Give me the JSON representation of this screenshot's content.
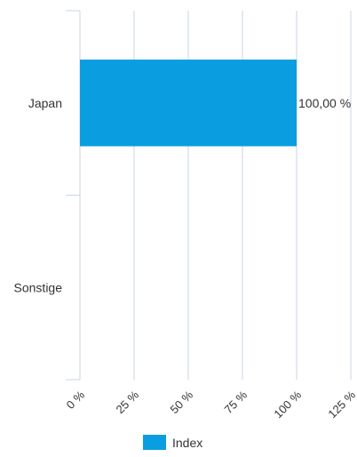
{
  "chart_data": {
    "type": "bar",
    "orientation": "horizontal",
    "categories": [
      "Japan",
      "Sonstige"
    ],
    "series": [
      {
        "name": "Index",
        "values": [
          100,
          null
        ]
      }
    ],
    "data_labels": [
      "100,00 %",
      ""
    ],
    "x_ticks": [
      "0 %",
      "25 %",
      "50 %",
      "75 %",
      "100 %",
      "125 %"
    ],
    "xlim": [
      0,
      125
    ],
    "grid": "vertical",
    "legend_position": "bottom",
    "bar_color": "#0a9ee0"
  },
  "colors": {
    "grid": "#c9d6e3",
    "text": "#333333"
  }
}
